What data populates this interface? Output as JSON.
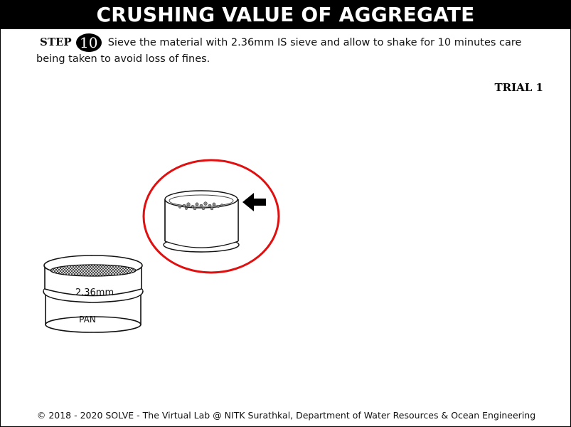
{
  "header": {
    "title": "CRUSHING VALUE OF AGGREGATE"
  },
  "step": {
    "label": "STEP",
    "number": "10",
    "instruction": "Sieve the material with 2.36mm IS sieve and allow to shake for 10 minutes care being taken to avoid loss of fines."
  },
  "trial": {
    "label": "TRIAL 1"
  },
  "apparatus": {
    "sieve_label": "2.36mm",
    "pan_label": "PAN",
    "highlight_color": "#e01010",
    "pointer_icon": "arrow-left-icon"
  },
  "footer": {
    "text": "© 2018 - 2020 SOLVE - The Virtual Lab @ NITK Surathkal, Department of Water Resources & Ocean Engineering"
  }
}
